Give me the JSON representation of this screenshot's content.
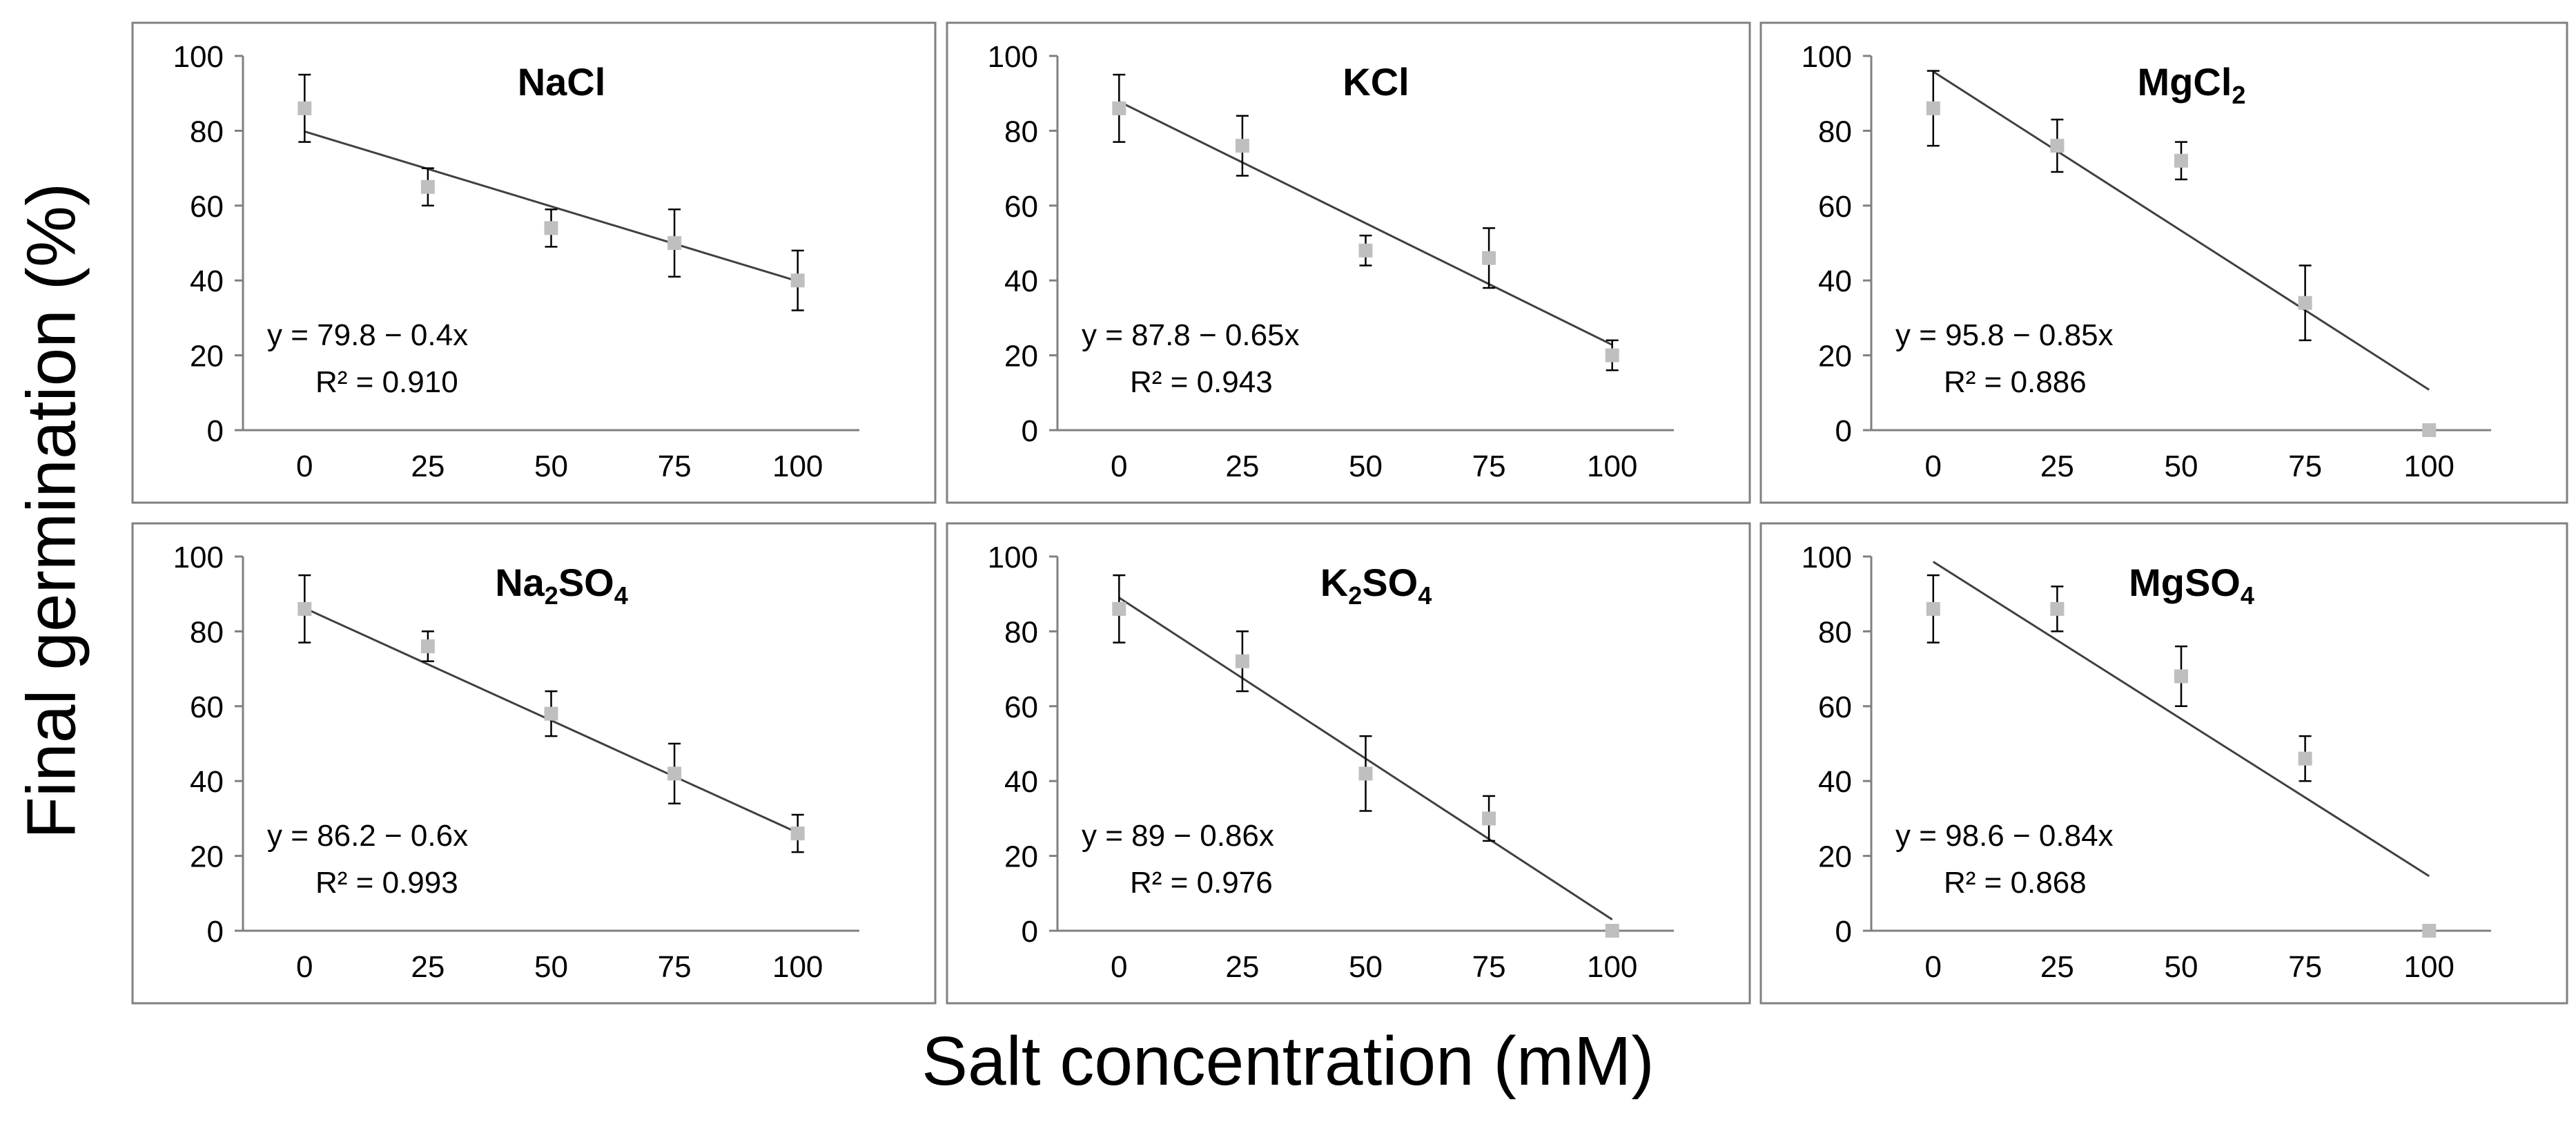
{
  "figure": {
    "ylabel": "Final germination (%)",
    "xlabel": "Salt concentration (mM)"
  },
  "style": {
    "marker_color": "#bfbfbf",
    "line_color": "#404040",
    "axis_color": "#808080",
    "frame_color": "#808080"
  },
  "chart_data": [
    {
      "type": "scatter",
      "title": "NaCl",
      "title_parts": [
        {
          "t": "NaCl"
        }
      ],
      "x": [
        0,
        25,
        50,
        75,
        100
      ],
      "y": [
        86,
        65,
        54,
        50,
        40
      ],
      "err": [
        9,
        5,
        5,
        9,
        8
      ],
      "trend": {
        "intercept": 79.8,
        "slope": -0.4
      },
      "equation": "y = 79.8 − 0.4x",
      "r2": "R² = 0.910",
      "xticks": [
        "0",
        "25",
        "50",
        "75",
        "100"
      ],
      "yticks": [
        "0",
        "20",
        "40",
        "60",
        "80",
        "100"
      ],
      "xlim": [
        -12.5,
        112.5
      ],
      "ylim": [
        0,
        100
      ]
    },
    {
      "type": "scatter",
      "title": "KCl",
      "title_parts": [
        {
          "t": "KCl"
        }
      ],
      "x": [
        0,
        25,
        50,
        75,
        100
      ],
      "y": [
        86,
        76,
        48,
        46,
        20
      ],
      "err": [
        9,
        8,
        4,
        8,
        4
      ],
      "trend": {
        "intercept": 87.8,
        "slope": -0.65
      },
      "equation": "y = 87.8 − 0.65x",
      "r2": "R² = 0.943",
      "xticks": [
        "0",
        "25",
        "50",
        "75",
        "100"
      ],
      "yticks": [
        "0",
        "20",
        "40",
        "60",
        "80",
        "100"
      ],
      "xlim": [
        -12.5,
        112.5
      ],
      "ylim": [
        0,
        100
      ]
    },
    {
      "type": "scatter",
      "title": "MgCl2",
      "title_parts": [
        {
          "t": "MgCl"
        },
        {
          "t": "2",
          "sub": true
        }
      ],
      "x": [
        0,
        25,
        50,
        75,
        100
      ],
      "y": [
        86,
        76,
        72,
        34,
        0
      ],
      "err": [
        10,
        7,
        5,
        10,
        0
      ],
      "trend": {
        "intercept": 95.8,
        "slope": -0.85
      },
      "equation": "y = 95.8 − 0.85x",
      "r2": "R² = 0.886",
      "xticks": [
        "0",
        "25",
        "50",
        "75",
        "100"
      ],
      "yticks": [
        "0",
        "20",
        "40",
        "60",
        "80",
        "100"
      ],
      "xlim": [
        -12.5,
        112.5
      ],
      "ylim": [
        0,
        100
      ]
    },
    {
      "type": "scatter",
      "title": "Na2SO4",
      "title_parts": [
        {
          "t": "Na"
        },
        {
          "t": "2",
          "sub": true
        },
        {
          "t": "SO"
        },
        {
          "t": "4",
          "sub": true
        }
      ],
      "x": [
        0,
        25,
        50,
        75,
        100
      ],
      "y": [
        86,
        76,
        58,
        42,
        26
      ],
      "err": [
        9,
        4,
        6,
        8,
        5
      ],
      "trend": {
        "intercept": 86.2,
        "slope": -0.6
      },
      "equation": "y = 86.2 − 0.6x",
      "r2": "R² = 0.993",
      "xticks": [
        "0",
        "25",
        "50",
        "75",
        "100"
      ],
      "yticks": [
        "0",
        "20",
        "40",
        "60",
        "80",
        "100"
      ],
      "xlim": [
        -12.5,
        112.5
      ],
      "ylim": [
        0,
        100
      ]
    },
    {
      "type": "scatter",
      "title": "K2SO4",
      "title_parts": [
        {
          "t": "K"
        },
        {
          "t": "2",
          "sub": true
        },
        {
          "t": "SO"
        },
        {
          "t": "4",
          "sub": true
        }
      ],
      "x": [
        0,
        25,
        50,
        75,
        100
      ],
      "y": [
        86,
        72,
        42,
        30,
        0
      ],
      "err": [
        9,
        8,
        10,
        6,
        0
      ],
      "trend": {
        "intercept": 89,
        "slope": -0.86
      },
      "equation": "y = 89 − 0.86x",
      "r2": "R² = 0.976",
      "xticks": [
        "0",
        "25",
        "50",
        "75",
        "100"
      ],
      "yticks": [
        "0",
        "20",
        "40",
        "60",
        "80",
        "100"
      ],
      "xlim": [
        -12.5,
        112.5
      ],
      "ylim": [
        0,
        100
      ]
    },
    {
      "type": "scatter",
      "title": "MgSO4",
      "title_parts": [
        {
          "t": "MgSO"
        },
        {
          "t": "4",
          "sub": true
        }
      ],
      "x": [
        0,
        25,
        50,
        75,
        100
      ],
      "y": [
        86,
        86,
        68,
        46,
        0
      ],
      "err": [
        9,
        6,
        8,
        6,
        0
      ],
      "trend": {
        "intercept": 98.6,
        "slope": -0.84
      },
      "equation": "y = 98.6 − 0.84x",
      "r2": "R² = 0.868",
      "xticks": [
        "0",
        "25",
        "50",
        "75",
        "100"
      ],
      "yticks": [
        "0",
        "20",
        "40",
        "60",
        "80",
        "100"
      ],
      "xlim": [
        -12.5,
        112.5
      ],
      "ylim": [
        0,
        100
      ]
    }
  ]
}
